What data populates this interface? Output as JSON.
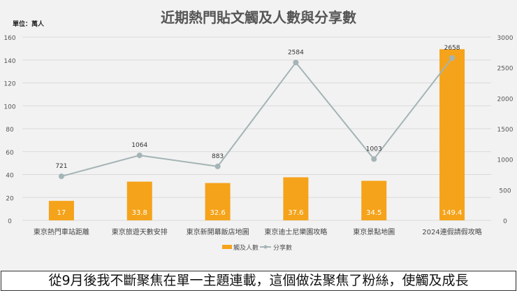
{
  "chart_data": {
    "type": "bar+line",
    "title": "近期熱門貼文觸及人數與分享數",
    "unit_label": "單位：萬人",
    "categories": [
      "東京熱門車站距離",
      "東京旅遊天數安排",
      "東京新開幕飯店地圖",
      "東京迪士尼樂園攻略",
      "東京景點地圖",
      "2024連假請假攻略"
    ],
    "series": [
      {
        "name": "觸及人數",
        "type": "bar",
        "axis": "left",
        "color": "#f5a31a",
        "values": [
          17,
          33.8,
          32.6,
          37.6,
          34.5,
          149.4
        ]
      },
      {
        "name": "分享數",
        "type": "line",
        "axis": "right",
        "color": "#a5b4b6",
        "values": [
          721,
          1064,
          883,
          2584,
          1003,
          2658
        ]
      }
    ],
    "ylim_left": [
      0,
      160
    ],
    "yticks_left": [
      0,
      20,
      40,
      60,
      80,
      100,
      120,
      140,
      160
    ],
    "ylim_right": [
      0,
      3000
    ],
    "yticks_right": [
      0,
      500,
      1000,
      1500,
      2000,
      2500,
      3000
    ],
    "grid": true,
    "legend": "bottom"
  },
  "caption": "從9月後我不斷聚焦在單一主題連載，這個做法聚焦了粉絲，使觸及成長"
}
